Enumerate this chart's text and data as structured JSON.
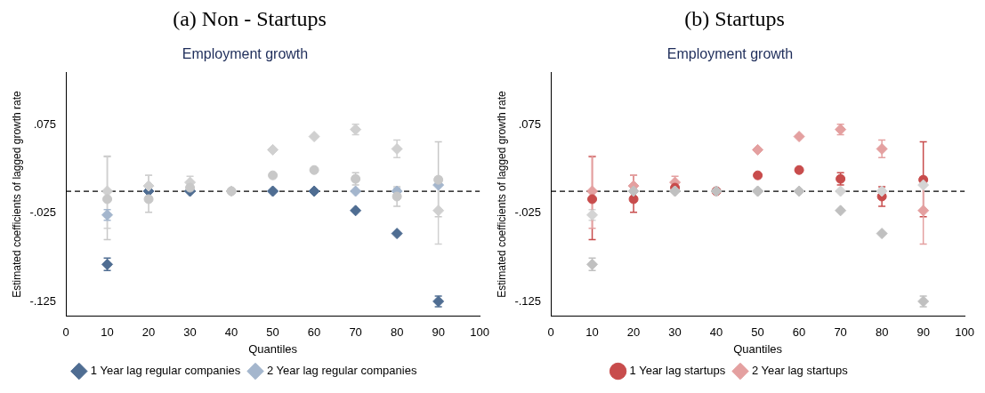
{
  "chart_data": [
    {
      "type": "scatter",
      "title": "(a) Non - Startups",
      "subtitle": "Employment growth",
      "xlabel": "Quantiles",
      "ylabel": "Estimated coefficients of lagged growth rate",
      "xlim": [
        0,
        100
      ],
      "xticks": [
        0,
        10,
        20,
        30,
        40,
        50,
        60,
        70,
        80,
        90,
        100
      ],
      "ylim": [
        -0.142,
        0.135
      ],
      "yticks": [
        {
          "value": 0.075,
          "label": ".075"
        },
        {
          "value": -0.025,
          "label": "-.025"
        },
        {
          "value": -0.125,
          "label": "-.125"
        }
      ],
      "x": [
        10,
        20,
        30,
        40,
        50,
        60,
        70,
        80,
        90
      ],
      "grid": false,
      "legend": "bottom",
      "ref_lines": [
        {
          "axis": "y",
          "value": 0,
          "color": "#000000",
          "line_style": "dashed"
        }
      ],
      "series": [
        {
          "color": "#c8c8c8",
          "marker": "circle",
          "values": [
            -0.009,
            -0.009,
            0.004,
            0,
            0.018,
            0.024,
            0.014,
            -0.006,
            0.013
          ],
          "errors": [
            [
              -0.055,
              0.039
            ],
            [
              -0.024,
              0.018
            ],
            null,
            null,
            null,
            null,
            0.007,
            0.011,
            [
              -0.029,
              0.056
            ]
          ]
        },
        {
          "color": "#d0d0d0",
          "marker": "diamond",
          "values": [
            0,
            0.006,
            0.01,
            0,
            0.047,
            0.062,
            0.07,
            0.048,
            -0.022
          ],
          "errors": [
            [
              -0.042,
              0.04
            ],
            0.012,
            0.007,
            null,
            null,
            null,
            0.006,
            0.01,
            [
              -0.06,
              0.016
            ]
          ]
        },
        {
          "name": "1 Year lag regular companies",
          "color": "#4f6d92",
          "marker": "diamond",
          "values": [
            -0.083,
            0,
            0,
            null,
            0,
            0,
            -0.022,
            -0.048,
            -0.125
          ],
          "errors": [
            0.007,
            null,
            null,
            null,
            null,
            null,
            null,
            null,
            0.006
          ]
        },
        {
          "name": "2 Year lag regular companies",
          "color": "#a4b6cd",
          "marker": "diamond",
          "values": [
            -0.027,
            null,
            0,
            null,
            0,
            0,
            0,
            0,
            0.007
          ],
          "errors": [
            0.006,
            null,
            null,
            null,
            null,
            null,
            null,
            0.003,
            null
          ]
        }
      ]
    },
    {
      "type": "scatter",
      "title": "(b) Startups",
      "subtitle": "Employment growth",
      "xlabel": "Quantiles",
      "ylabel": "Estimated coefficients of lagged growth rate",
      "xlim": [
        0,
        100
      ],
      "xticks": [
        0,
        10,
        20,
        30,
        40,
        50,
        60,
        70,
        80,
        90,
        100
      ],
      "ylim": [
        -0.142,
        0.135
      ],
      "yticks": [
        {
          "value": 0.075,
          "label": ".075"
        },
        {
          "value": -0.025,
          "label": "-.025"
        },
        {
          "value": -0.125,
          "label": "-.125"
        }
      ],
      "x": [
        10,
        20,
        30,
        40,
        50,
        60,
        70,
        80,
        90
      ],
      "grid": false,
      "legend": "bottom",
      "ref_lines": [
        {
          "axis": "y",
          "value": 0,
          "color": "#000000",
          "line_style": "dashed"
        }
      ],
      "series": [
        {
          "color": "#c0c0c0",
          "marker": "diamond",
          "values": [
            -0.083,
            0,
            0,
            0,
            0,
            0,
            -0.022,
            -0.048,
            -0.125
          ],
          "errors": [
            0.007,
            null,
            null,
            null,
            null,
            null,
            null,
            null,
            0.006
          ]
        },
        {
          "color": "#d4d4d4",
          "marker": "diamond",
          "values": [
            -0.027,
            null,
            0,
            0,
            0,
            null,
            0,
            0,
            0.007
          ],
          "errors": [
            0.006,
            null,
            null,
            null,
            null,
            null,
            null,
            0.003,
            null
          ]
        },
        {
          "name": "1 Year lag startups",
          "color": "#c84c4c",
          "marker": "circle",
          "values": [
            -0.009,
            -0.009,
            0.004,
            0,
            0.018,
            0.024,
            0.014,
            -0.006,
            0.013
          ],
          "errors": [
            [
              -0.055,
              0.039
            ],
            [
              -0.024,
              0.018
            ],
            null,
            null,
            null,
            null,
            0.007,
            0.011,
            [
              -0.029,
              0.056
            ]
          ]
        },
        {
          "name": "2 Year lag startups",
          "color": "#e4a0a0",
          "marker": "diamond",
          "values": [
            0,
            0.006,
            0.01,
            null,
            0.047,
            0.062,
            0.07,
            0.048,
            -0.022
          ],
          "errors": [
            [
              -0.042,
              0.04
            ],
            0.012,
            0.007,
            null,
            null,
            null,
            0.006,
            0.01,
            [
              -0.06,
              0.016
            ]
          ]
        }
      ]
    }
  ]
}
